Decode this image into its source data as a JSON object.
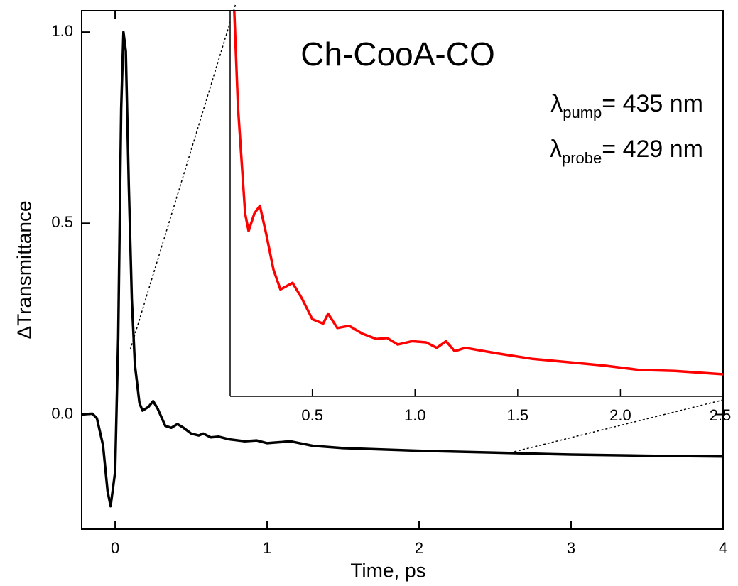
{
  "chart_data": [
    {
      "type": "line",
      "x_label": "Time, ps",
      "y_label": "ΔTransmittance",
      "xlim": [
        -0.22,
        4
      ],
      "ylim": [
        -0.3,
        1.056
      ],
      "xticks": [
        0,
        1,
        2,
        3,
        4
      ],
      "yticks": [
        {
          "value": 0,
          "label": "0.0"
        },
        {
          "value": 0.5,
          "label": "0.5"
        },
        {
          "value": 1,
          "label": "1.0"
        }
      ],
      "series": [
        {
          "color": "#000000",
          "x": [
            -0.22,
            -0.15,
            -0.12,
            -0.08,
            -0.05,
            -0.03,
            0.0,
            0.02,
            0.04,
            0.055,
            0.07,
            0.09,
            0.11,
            0.13,
            0.16,
            0.18,
            0.22,
            0.25,
            0.28,
            0.33,
            0.37,
            0.41,
            0.45,
            0.5,
            0.55,
            0.58,
            0.63,
            0.68,
            0.75,
            0.85,
            0.93,
            1.0,
            1.1,
            1.15,
            1.3,
            1.5,
            2.0,
            2.5,
            3.0,
            3.5,
            4.0
          ],
          "values": [
            0,
            0.002,
            -0.01,
            -0.08,
            -0.2,
            -0.24,
            -0.15,
            0.2,
            0.8,
            1.0,
            0.95,
            0.6,
            0.3,
            0.13,
            0.03,
            0.01,
            0.02,
            0.035,
            0.015,
            -0.03,
            -0.035,
            -0.025,
            -0.035,
            -0.05,
            -0.055,
            -0.05,
            -0.06,
            -0.058,
            -0.065,
            -0.07,
            -0.068,
            -0.075,
            -0.072,
            -0.07,
            -0.082,
            -0.088,
            -0.095,
            -0.1,
            -0.105,
            -0.108,
            -0.11
          ]
        }
      ]
    },
    {
      "type": "line",
      "title": "Ch-CooA-CO",
      "annotations": [
        {
          "symbol": "λ",
          "sub": "pump",
          "text": "= 435 nm"
        },
        {
          "symbol": "λ",
          "sub": "probe",
          "text": "= 429 nm"
        }
      ],
      "xlim": [
        0.1,
        2.5
      ],
      "ylim": [
        -0.12,
        0.23
      ],
      "xticks": [
        {
          "value": 0.5,
          "label": "0.5"
        },
        {
          "value": 1,
          "label": "1.0"
        },
        {
          "value": 1.5,
          "label": "1.5"
        },
        {
          "value": 2,
          "label": "2.0"
        },
        {
          "value": 2.5,
          "label": "2.5"
        }
      ],
      "series": [
        {
          "color": "#ff0000",
          "x": [
            0.12,
            0.138,
            0.173,
            0.19,
            0.218,
            0.245,
            0.276,
            0.311,
            0.345,
            0.404,
            0.449,
            0.5,
            0.553,
            0.577,
            0.622,
            0.68,
            0.743,
            0.812,
            0.864,
            0.916,
            0.985,
            1.054,
            1.106,
            1.151,
            1.193,
            1.245,
            1.4,
            1.573,
            1.746,
            1.919,
            2.092,
            2.265,
            2.5
          ],
          "values": [
            0.23,
            0.143,
            0.046,
            0.03,
            0.046,
            0.053,
            0.027,
            -0.005,
            -0.023,
            -0.017,
            -0.031,
            -0.05,
            -0.054,
            -0.045,
            -0.058,
            -0.056,
            -0.063,
            -0.068,
            -0.067,
            -0.073,
            -0.07,
            -0.071,
            -0.076,
            -0.07,
            -0.079,
            -0.076,
            -0.081,
            -0.086,
            -0.089,
            -0.092,
            -0.096,
            -0.097,
            -0.1
          ]
        }
      ]
    }
  ]
}
